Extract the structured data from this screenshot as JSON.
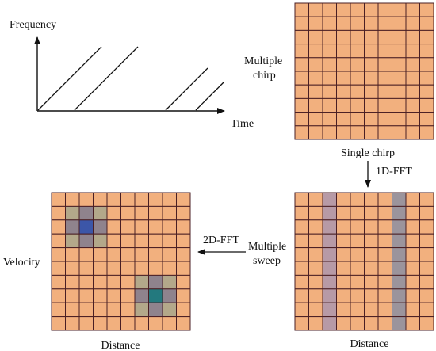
{
  "colors": {
    "cell": "#f2b07e",
    "grid_line": "#4a1f24",
    "axis": "#111111",
    "stripe_mauve": "#b79aa6",
    "stripe_gray": "#9b949c",
    "peak_center_blue": "#3c56a8",
    "peak_center_teal": "#23797e",
    "peak_arm": "#8f838d",
    "peak_corner_green": "#b3a88a"
  },
  "chirp_plot": {
    "y_label": "Frequency",
    "x_label": "Time",
    "ramp_count": 4
  },
  "single_chirp_matrix": {
    "rows": 10,
    "cols": 10,
    "left_label_line1": "Multiple",
    "left_label_line2": "chirp",
    "bottom_label": "Single chirp"
  },
  "fft1": {
    "label": "1D-FFT"
  },
  "range_matrix": {
    "rows": 10,
    "cols": 10,
    "left_label_line1": "Multiple",
    "left_label_line2": "sweep",
    "bottom_label": "Distance",
    "highlighted_columns": [
      {
        "col": 2,
        "color": "stripe_mauve"
      },
      {
        "col": 7,
        "color": "stripe_gray"
      }
    ]
  },
  "fft2": {
    "label": "2D-FFT"
  },
  "range_doppler_matrix": {
    "rows": 10,
    "cols": 10,
    "left_label": "Velocity",
    "bottom_label": "Distance",
    "peaks": [
      {
        "row": 2,
        "col": 2,
        "center_color": "peak_center_blue"
      },
      {
        "row": 7,
        "col": 7,
        "center_color": "peak_center_teal"
      }
    ]
  }
}
